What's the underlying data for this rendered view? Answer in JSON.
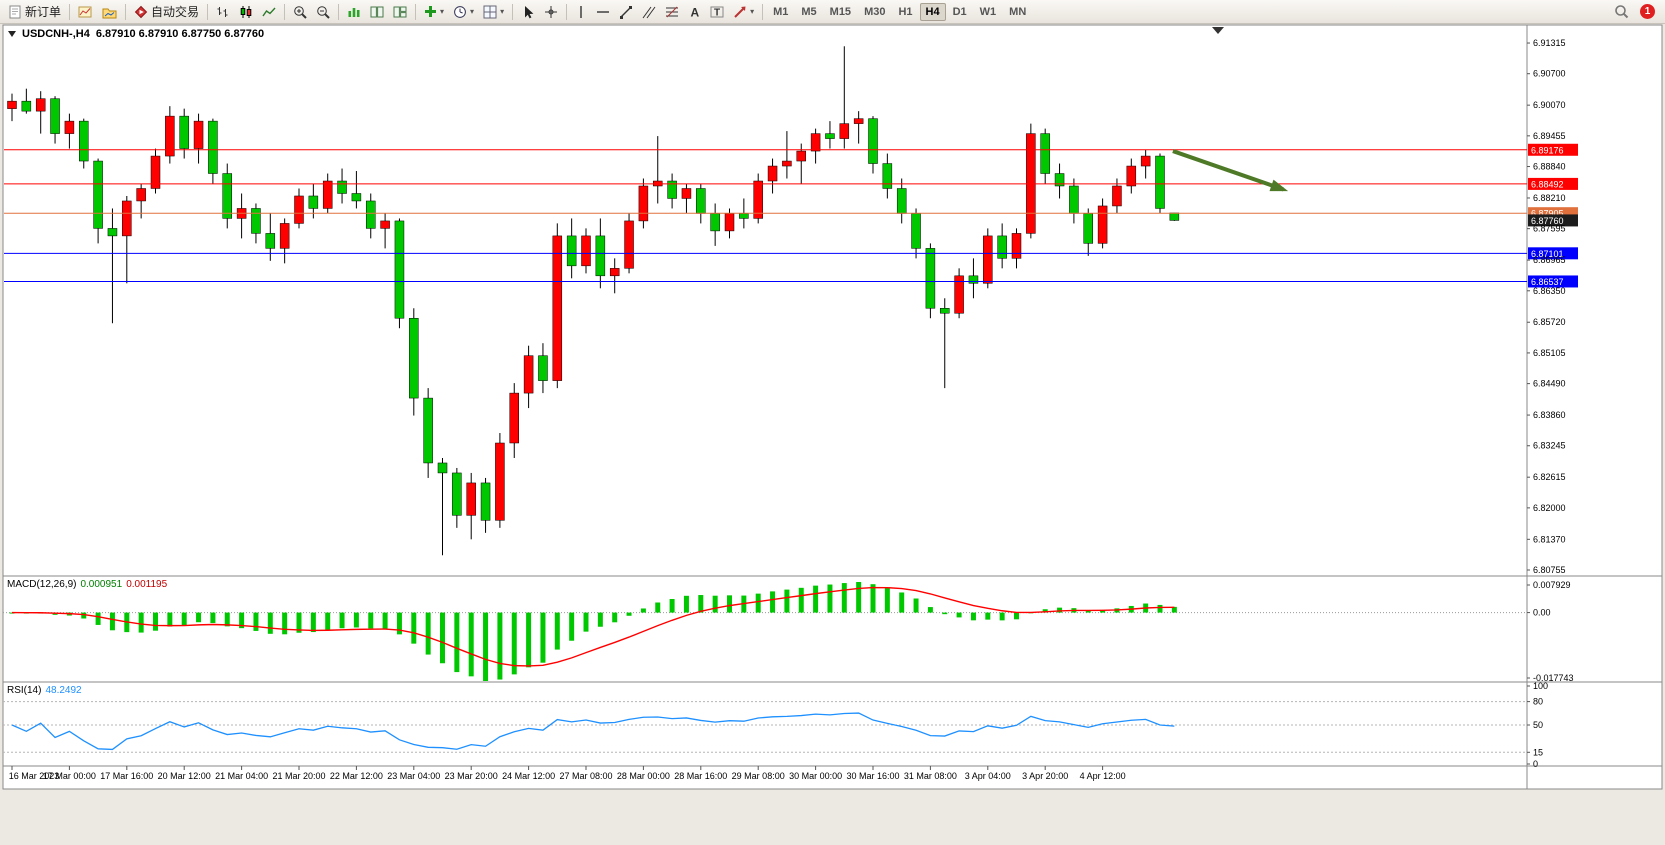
{
  "toolbar": {
    "new_order_label": "新订单",
    "auto_trading_label": "自动交易",
    "timeframes": [
      "M1",
      "M5",
      "M15",
      "M30",
      "H1",
      "H4",
      "D1",
      "W1",
      "MN"
    ],
    "active_timeframe": "H4",
    "notification_count": "1"
  },
  "chart_data": [
    {
      "type": "candlestick",
      "title": "USDCNH-,H4",
      "ohlc_label": "6.87910 6.87910 6.87750 6.87760",
      "ohlc_values": [
        6.8791,
        6.8791,
        6.8775,
        6.8776
      ],
      "bull_color": "#ff0000",
      "bear_color": "#00c800",
      "y_range": [
        6.80675,
        6.91616
      ],
      "y_ticks": [
        6.91315,
        6.907,
        6.9007,
        6.89455,
        6.8884,
        6.8821,
        6.87595,
        6.86965,
        6.8635,
        6.8572,
        6.85105,
        6.8449,
        6.8386,
        6.83245,
        6.82615,
        6.82,
        6.8137,
        6.80755
      ],
      "hlines": [
        {
          "price": 6.89176,
          "label": "6.89176",
          "color": "#ff0000"
        },
        {
          "price": 6.88492,
          "label": "6.88492",
          "color": "#ff0000"
        },
        {
          "price": 6.87905,
          "label": "6.87905",
          "color": "#e0703c"
        },
        {
          "price": 6.87101,
          "label": "6.87101",
          "color": "#0000ff"
        },
        {
          "price": 6.86537,
          "label": "6.86537",
          "color": "#0000ff"
        }
      ],
      "current_price": {
        "price": 6.8776,
        "label": "6.87760",
        "bg": "#1c1c1c"
      },
      "x_label_step": 4,
      "x_labels": [
        "16 Mar 2023",
        "17 Mar 00:00",
        "17 Mar 16:00",
        "20 Mar 12:00",
        "21 Mar 04:00",
        "21 Mar 20:00",
        "22 Mar 12:00",
        "23 Mar 04:00",
        "23 Mar 20:00",
        "24 Mar 12:00",
        "27 Mar 08:00",
        "28 Mar 00:00",
        "28 Mar 16:00",
        "29 Mar 08:00",
        "30 Mar 00:00",
        "30 Mar 16:00",
        "31 Mar 08:00",
        "3 Apr 04:00",
        "3 Apr 20:00",
        "4 Apr 12:00"
      ],
      "candles": [
        [
          6.9,
          6.903,
          6.8975,
          6.9015
        ],
        [
          6.9015,
          6.904,
          6.899,
          6.8995
        ],
        [
          6.8995,
          6.9035,
          6.895,
          6.902
        ],
        [
          6.902,
          6.9025,
          6.893,
          6.895
        ],
        [
          6.895,
          6.899,
          6.892,
          6.8975
        ],
        [
          6.8975,
          6.898,
          6.888,
          6.8895
        ],
        [
          6.8895,
          6.89,
          6.873,
          6.876
        ],
        [
          6.876,
          6.88,
          6.857,
          6.8745
        ],
        [
          6.8745,
          6.8825,
          6.865,
          6.8815
        ],
        [
          6.8815,
          6.885,
          6.878,
          6.884
        ],
        [
          6.884,
          6.892,
          6.883,
          6.8905
        ],
        [
          6.8905,
          6.9005,
          6.889,
          6.8985
        ],
        [
          6.8985,
          6.9,
          6.89,
          6.892
        ],
        [
          6.892,
          6.899,
          6.889,
          6.8975
        ],
        [
          6.8975,
          6.898,
          6.885,
          6.887
        ],
        [
          6.887,
          6.889,
          6.876,
          6.878
        ],
        [
          6.878,
          6.883,
          6.874,
          6.88
        ],
        [
          6.88,
          6.881,
          6.873,
          6.875
        ],
        [
          6.875,
          6.879,
          6.8695,
          6.872
        ],
        [
          6.872,
          6.878,
          6.869,
          6.877
        ],
        [
          6.877,
          6.884,
          6.876,
          6.8825
        ],
        [
          6.8825,
          6.885,
          6.878,
          6.88
        ],
        [
          6.88,
          6.887,
          6.879,
          6.8855
        ],
        [
          6.8855,
          6.888,
          6.881,
          6.883
        ],
        [
          6.883,
          6.8875,
          6.88,
          6.8815
        ],
        [
          6.8815,
          6.883,
          6.874,
          6.876
        ],
        [
          6.876,
          6.879,
          6.872,
          6.8775
        ],
        [
          6.8775,
          6.878,
          6.856,
          6.858
        ],
        [
          6.858,
          6.86,
          6.8385,
          6.842
        ],
        [
          6.842,
          6.844,
          6.826,
          6.829
        ],
        [
          6.829,
          6.83,
          6.8105,
          6.827
        ],
        [
          6.827,
          6.828,
          6.816,
          6.8185
        ],
        [
          6.8185,
          6.827,
          6.8137,
          6.825
        ],
        [
          6.825,
          6.826,
          6.815,
          6.8175
        ],
        [
          6.8175,
          6.835,
          6.816,
          6.833
        ],
        [
          6.833,
          6.845,
          6.83,
          6.843
        ],
        [
          6.843,
          6.8525,
          6.84,
          6.8505
        ],
        [
          6.8505,
          6.853,
          6.843,
          6.8455
        ],
        [
          6.8455,
          6.877,
          6.844,
          6.8745
        ],
        [
          6.8745,
          6.878,
          6.866,
          6.8685
        ],
        [
          6.8685,
          6.876,
          6.867,
          6.8745
        ],
        [
          6.8745,
          6.878,
          6.864,
          6.8665
        ],
        [
          6.8665,
          6.87,
          6.863,
          6.868
        ],
        [
          6.868,
          6.879,
          6.867,
          6.8775
        ],
        [
          6.8775,
          6.886,
          6.876,
          6.8845
        ],
        [
          6.8845,
          6.8945,
          6.881,
          6.8855
        ],
        [
          6.8855,
          6.887,
          6.88,
          6.882
        ],
        [
          6.882,
          6.885,
          6.879,
          6.884
        ],
        [
          6.884,
          6.885,
          6.877,
          6.879
        ],
        [
          6.879,
          6.881,
          6.8725,
          6.8755
        ],
        [
          6.8755,
          6.88,
          6.874,
          6.879
        ],
        [
          6.879,
          6.882,
          6.876,
          6.878
        ],
        [
          6.878,
          6.887,
          6.877,
          6.8855
        ],
        [
          6.8855,
          6.89,
          6.883,
          6.8885
        ],
        [
          6.8885,
          6.8955,
          6.886,
          6.8895
        ],
        [
          6.8895,
          6.893,
          6.885,
          6.8915
        ],
        [
          6.8915,
          6.896,
          6.889,
          6.895
        ],
        [
          6.895,
          6.8975,
          6.892,
          6.894
        ],
        [
          6.894,
          6.9125,
          6.892,
          6.897
        ],
        [
          6.897,
          6.8995,
          6.893,
          6.898
        ],
        [
          6.898,
          6.8985,
          6.887,
          6.889
        ],
        [
          6.889,
          6.891,
          6.882,
          6.884
        ],
        [
          6.884,
          6.886,
          6.877,
          6.879
        ],
        [
          6.879,
          6.88,
          6.87,
          6.872
        ],
        [
          6.872,
          6.873,
          6.858,
          6.86
        ],
        [
          6.86,
          6.862,
          6.844,
          6.859
        ],
        [
          6.859,
          6.868,
          6.858,
          6.8665
        ],
        [
          6.8665,
          6.87,
          6.862,
          6.865
        ],
        [
          6.865,
          6.876,
          6.864,
          6.8745
        ],
        [
          6.8745,
          6.877,
          6.868,
          6.87
        ],
        [
          6.87,
          6.876,
          6.868,
          6.875
        ],
        [
          6.875,
          6.897,
          6.874,
          6.895
        ],
        [
          6.895,
          6.896,
          6.885,
          6.887
        ],
        [
          6.887,
          6.889,
          6.882,
          6.8845
        ],
        [
          6.8845,
          6.886,
          6.877,
          6.879
        ],
        [
          6.879,
          6.88,
          6.8705,
          6.873
        ],
        [
          6.873,
          6.882,
          6.872,
          6.8805
        ],
        [
          6.8805,
          6.886,
          6.879,
          6.8845
        ],
        [
          6.8845,
          6.89,
          6.883,
          6.8885
        ],
        [
          6.8885,
          6.8918,
          6.886,
          6.8905
        ],
        [
          6.8905,
          6.891,
          6.879,
          6.88
        ],
        [
          6.8791,
          6.8791,
          6.8775,
          6.8776
        ]
      ],
      "annotation_arrow": {
        "x1_bar": 80.9,
        "y1_price": 6.8915,
        "x2_bar": 88.6,
        "y2_price": 6.8838,
        "color": "#4e7a27",
        "width": 4
      }
    },
    {
      "type": "bar",
      "indicator": "MACD",
      "label": "MACD(12,26,9)",
      "fast": 12,
      "slow": 26,
      "signal_period": 9,
      "value_main": "0.000951",
      "value_signal": "0.001195",
      "y_range": [
        -0.017743,
        0.007929
      ],
      "y_tick_labels": [
        "0.007929",
        "0.00",
        "-0.017743"
      ],
      "histogram_color": "#00c800",
      "signal_color": "#ff0000"
    },
    {
      "type": "line",
      "indicator": "RSI",
      "label": "RSI(14)",
      "period": 14,
      "value": "48.2492",
      "y_range": [
        0,
        100
      ],
      "y_ticks": [
        100,
        80,
        50,
        15,
        0
      ],
      "levels": [
        80,
        50,
        15
      ],
      "line_color": "#1e90ff"
    }
  ]
}
